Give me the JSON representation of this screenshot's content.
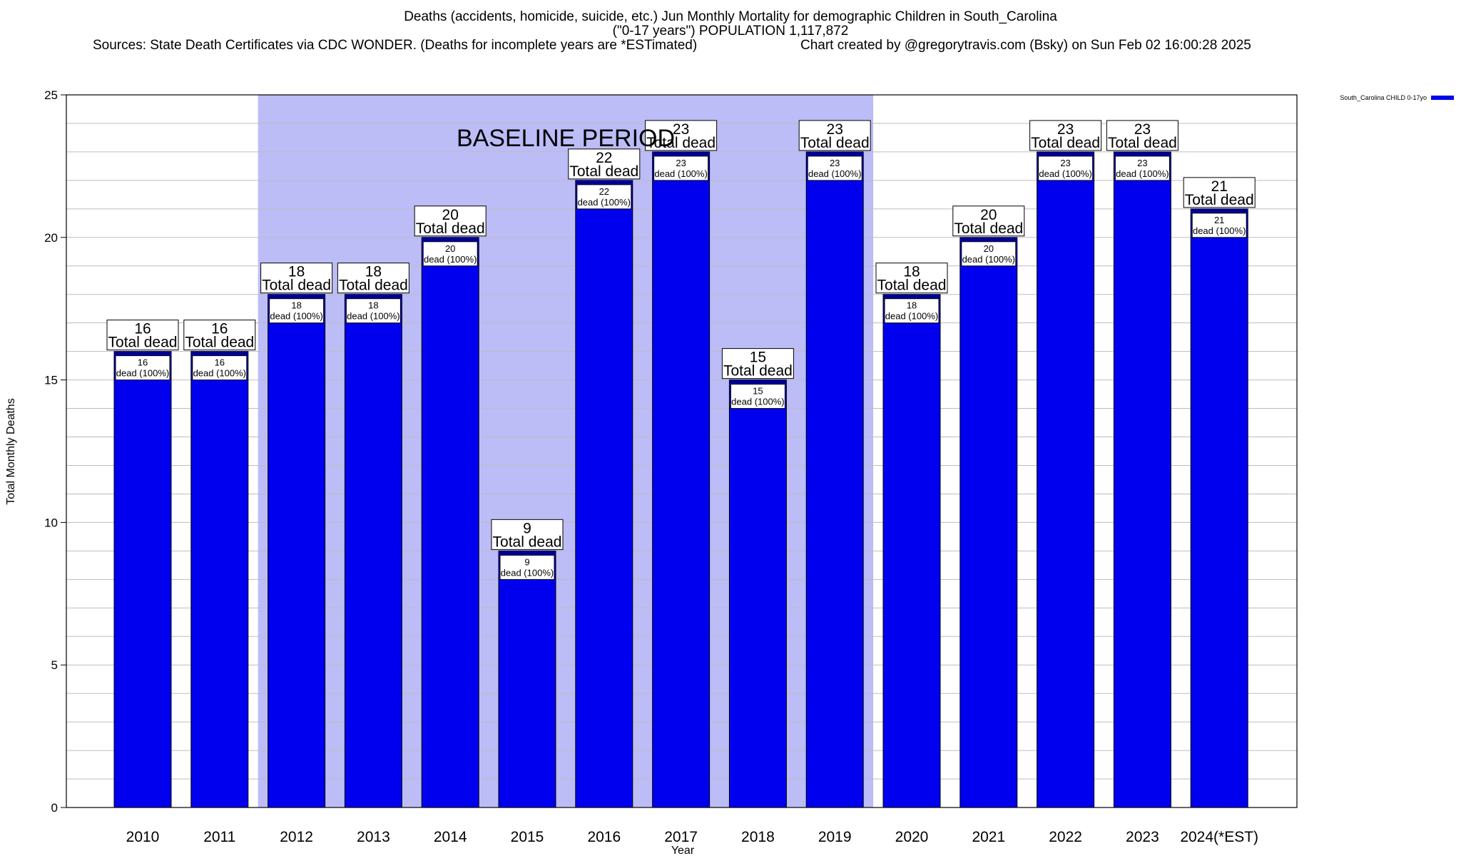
{
  "header": {
    "title_line1": "Deaths (accidents, homicide, suicide, etc.) Jun Monthly Mortality for demographic Children in South_Carolina",
    "title_line2": "(\"0-17 years\") POPULATION 1,117,872",
    "sources": "Sources: State Death Certificates via CDC WONDER. (Deaths for incomplete years are *ESTimated)",
    "credit": "Chart created by @gregorytravis.com (Bsky) on Sun Feb 02 16:00:28 2025"
  },
  "chart_data": {
    "type": "bar",
    "xlabel": "Year",
    "ylabel": "Total Monthly Deaths",
    "ylim": [
      0,
      25
    ],
    "yticks": [
      0,
      5,
      10,
      15,
      20,
      25
    ],
    "grid": true,
    "categories": [
      "2010",
      "2011",
      "2012",
      "2013",
      "2014",
      "2015",
      "2016",
      "2017",
      "2018",
      "2019",
      "2020",
      "2021",
      "2022",
      "2023",
      "2024(*EST)"
    ],
    "series": [
      {
        "name": "South_Carolina CHILD 0-17yo",
        "values": [
          16,
          16,
          18,
          18,
          20,
          9,
          22,
          23,
          15,
          23,
          18,
          20,
          23,
          23,
          21
        ],
        "inner_labels": [
          "dead (100%)",
          "dead (100%)",
          "dead (100%)",
          "dead (100%)",
          "dead (100%)",
          "dead (100%)",
          "dead (100%)",
          "dead (100%)",
          "dead (100%)",
          "dead (100%)",
          "dead (100%)",
          "dead (100%)",
          "dead (100%)",
          "dead (100%)",
          "dead (100%)"
        ]
      }
    ],
    "total_label": "Total dead",
    "baseline": {
      "label": "BASELINE PERIOD",
      "from": "2012",
      "to": "2019"
    },
    "legend_position": "top-right",
    "colors": {
      "bar": "#0000ee",
      "bar_cap": "#000090",
      "baseline": "#bcbcf7",
      "grid": "#bdbdbd"
    }
  }
}
